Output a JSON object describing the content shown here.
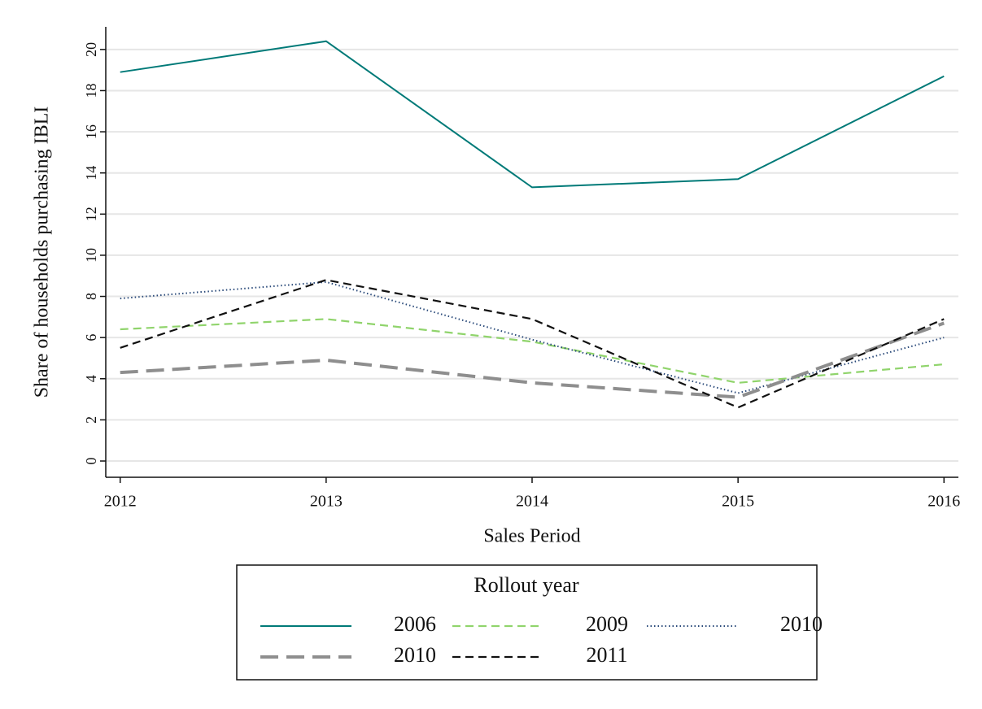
{
  "chart_data": {
    "type": "line",
    "x": [
      2012,
      2013,
      2014,
      2015,
      2016
    ],
    "xlim": [
      2011.93,
      2016.07
    ],
    "xticks": [
      2012,
      2013,
      2014,
      2015,
      2016
    ],
    "ylim": [
      -0.79,
      21.1
    ],
    "yticks": [
      0,
      2,
      4,
      6,
      8,
      10,
      12,
      14,
      16,
      18,
      20
    ],
    "xlabel": "Sales Period",
    "ylabel": "Share of households purchasing IBLI",
    "grid": true,
    "legend_title": "Rollout year",
    "legend_position": "bottom",
    "series": [
      {
        "name": "2006",
        "color": "#007a78",
        "linestyle": "solid",
        "values": [
          18.9,
          20.4,
          13.3,
          13.7,
          18.7
        ]
      },
      {
        "name": "2009",
        "color": "#90d46c",
        "linestyle": "dashed",
        "values": [
          6.4,
          6.9,
          5.8,
          3.8,
          4.7
        ]
      },
      {
        "name": "2010",
        "color": "#2a4a7a",
        "linestyle": "dotted",
        "values": [
          7.9,
          8.7,
          5.9,
          3.3,
          6.0
        ]
      },
      {
        "name": "2010",
        "color": "#8e8e8e",
        "linestyle": "longdash",
        "values": [
          4.3,
          4.9,
          3.8,
          3.1,
          6.7
        ]
      },
      {
        "name": "2011",
        "color": "#111111",
        "linestyle": "dashed",
        "values": [
          5.5,
          8.8,
          6.9,
          2.6,
          6.9
        ]
      }
    ]
  }
}
